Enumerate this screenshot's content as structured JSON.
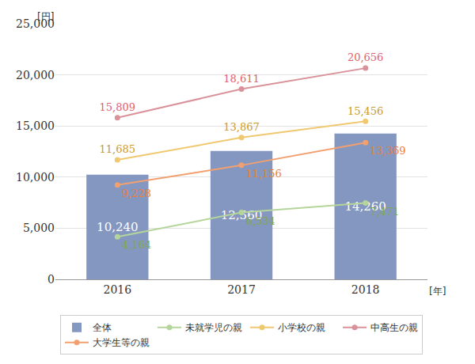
{
  "chart_data": {
    "type": "bar",
    "categories": [
      "2016",
      "2017",
      "2018"
    ],
    "y_label": "[円]",
    "x_label": "[年]",
    "ylim": [
      0,
      25000
    ],
    "yticks": [
      0,
      {
        "value": 5000,
        "label": "5,000"
      },
      {
        "value": 10000,
        "label": "10,000"
      },
      {
        "value": 15000,
        "label": "15,000"
      },
      {
        "value": 20000,
        "label": "20,000"
      },
      {
        "value": 25000,
        "label": "25,000"
      }
    ],
    "grid": true,
    "legend": "bottom",
    "data_labels": true,
    "series": [
      {
        "name": "全体",
        "type": "bar",
        "color": "#8497c0",
        "values": [
          10240,
          12560,
          14260
        ],
        "value_labels": [
          "10,240",
          "12,560",
          "14,260"
        ]
      },
      {
        "name": "未就学児の親",
        "type": "line",
        "marker": "circle",
        "color": "#b5d59a",
        "values": [
          4164,
          6534,
          7471
        ],
        "value_labels": [
          "4,164",
          "6,534",
          "7,471"
        ]
      },
      {
        "name": "小学校の親",
        "type": "line",
        "marker": "circle",
        "color": "#f0c870",
        "values": [
          11685,
          13867,
          15456
        ],
        "value_labels": [
          "11,685",
          "13,867",
          "15,456"
        ]
      },
      {
        "name": "中高生の親",
        "type": "line",
        "marker": "circle",
        "color": "#d9929a",
        "values": [
          15809,
          18611,
          20656
        ],
        "value_labels": [
          "15,809",
          "18,611",
          "20,656"
        ]
      },
      {
        "name": "大学生等の親",
        "type": "line",
        "marker": "circle",
        "color": "#f2a070",
        "values": [
          9228,
          11156,
          13369
        ],
        "value_labels": [
          "9,228",
          "11,156",
          "13,369"
        ]
      }
    ]
  }
}
